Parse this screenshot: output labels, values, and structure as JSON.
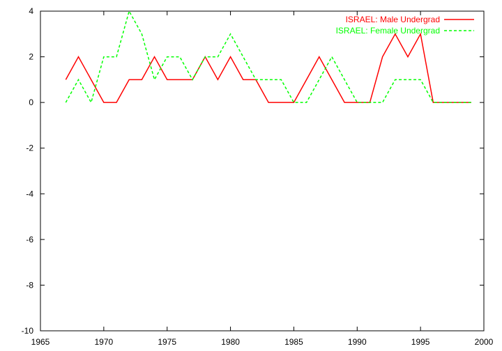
{
  "chart_data": {
    "type": "line",
    "title": "",
    "xlabel": "",
    "ylabel": "",
    "xlim": [
      1965,
      2000
    ],
    "ylim": [
      -10,
      4
    ],
    "xticks": [
      1965,
      1970,
      1975,
      1980,
      1985,
      1990,
      1995,
      2000
    ],
    "yticks": [
      4,
      2,
      0,
      -2,
      -4,
      -6,
      -8,
      -10
    ],
    "grid": false,
    "legend_position": "top-right",
    "x": [
      1967,
      1968,
      1969,
      1970,
      1971,
      1972,
      1973,
      1974,
      1975,
      1976,
      1977,
      1978,
      1979,
      1980,
      1981,
      1982,
      1983,
      1984,
      1985,
      1986,
      1987,
      1988,
      1989,
      1990,
      1991,
      1992,
      1993,
      1994,
      1995,
      1996,
      1997,
      1998,
      1999
    ],
    "series": [
      {
        "name": "ISRAEL: Male Undergrad",
        "color": "#ff0000",
        "dash": "solid",
        "values": [
          1,
          2,
          1,
          0,
          0,
          1,
          1,
          2,
          1,
          1,
          1,
          2,
          1,
          2,
          1,
          1,
          0,
          0,
          0,
          1,
          2,
          1,
          0,
          0,
          0,
          2,
          3,
          2,
          3,
          0,
          0,
          0,
          0
        ]
      },
      {
        "name": "ISRAEL: Female Undergrad",
        "color": "#00ff00",
        "dash": "dashed",
        "values": [
          0,
          1,
          0,
          2,
          2,
          4,
          3,
          1,
          2,
          2,
          1,
          2,
          2,
          3,
          2,
          1,
          1,
          1,
          0,
          0,
          1,
          2,
          1,
          0,
          0,
          0,
          1,
          1,
          1,
          0,
          0,
          0,
          0
        ]
      }
    ]
  }
}
